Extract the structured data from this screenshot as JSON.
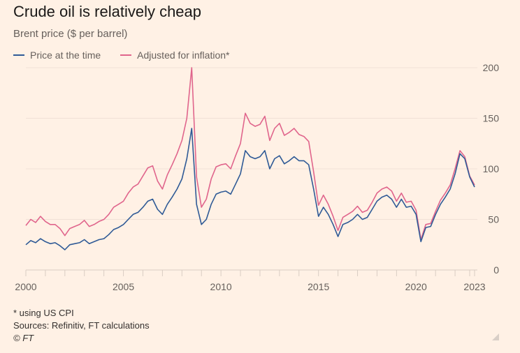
{
  "title": "Crude oil is relatively cheap",
  "subtitle": "Brent price ($ per barrel)",
  "legend": [
    {
      "label": "Price at the time",
      "color": "#2f5a96"
    },
    {
      "label": "Adjusted for inflation*",
      "color": "#e0658c"
    }
  ],
  "footer": {
    "note": "* using US CPI",
    "sources": "Sources: Refinitiv, FT calculations",
    "copyright": "© FT"
  },
  "chart_data": {
    "type": "line",
    "title": "Crude oil is relatively cheap",
    "subtitle": "Brent price ($ per barrel)",
    "xlabel": "",
    "ylabel": "Brent price ($ per barrel)",
    "xlim": [
      2000,
      2023.2
    ],
    "ylim": [
      0,
      200
    ],
    "x_ticks": [
      2000,
      2005,
      2010,
      2015,
      2020,
      2023
    ],
    "y_ticks": [
      0,
      50,
      100,
      150,
      200
    ],
    "y_axis_side": "right",
    "grid": true,
    "legend_position": "top-left",
    "x": [
      2000.0,
      2000.25,
      2000.5,
      2000.75,
      2001.0,
      2001.25,
      2001.5,
      2001.75,
      2002.0,
      2002.25,
      2002.5,
      2002.75,
      2003.0,
      2003.25,
      2003.5,
      2003.75,
      2004.0,
      2004.25,
      2004.5,
      2004.75,
      2005.0,
      2005.25,
      2005.5,
      2005.75,
      2006.0,
      2006.25,
      2006.5,
      2006.75,
      2007.0,
      2007.25,
      2007.5,
      2007.75,
      2008.0,
      2008.25,
      2008.5,
      2008.75,
      2009.0,
      2009.25,
      2009.5,
      2009.75,
      2010.0,
      2010.25,
      2010.5,
      2010.75,
      2011.0,
      2011.25,
      2011.5,
      2011.75,
      2012.0,
      2012.25,
      2012.5,
      2012.75,
      2013.0,
      2013.25,
      2013.5,
      2013.75,
      2014.0,
      2014.25,
      2014.5,
      2014.75,
      2015.0,
      2015.25,
      2015.5,
      2015.75,
      2016.0,
      2016.25,
      2016.5,
      2016.75,
      2017.0,
      2017.25,
      2017.5,
      2017.75,
      2018.0,
      2018.25,
      2018.5,
      2018.75,
      2019.0,
      2019.25,
      2019.5,
      2019.75,
      2020.0,
      2020.25,
      2020.5,
      2020.75,
      2021.0,
      2021.25,
      2021.5,
      2021.75,
      2022.0,
      2022.25,
      2022.5,
      2022.75,
      2023.0
    ],
    "series": [
      {
        "name": "Price at the time",
        "color": "#2f5a96",
        "values": [
          25,
          29,
          27,
          31,
          28,
          26,
          27,
          24,
          20,
          25,
          26,
          27,
          30,
          26,
          28,
          30,
          31,
          35,
          40,
          42,
          45,
          50,
          55,
          57,
          62,
          68,
          70,
          60,
          55,
          65,
          72,
          80,
          90,
          110,
          140,
          65,
          45,
          50,
          65,
          75,
          77,
          78,
          75,
          85,
          95,
          118,
          112,
          110,
          112,
          118,
          100,
          110,
          113,
          105,
          108,
          112,
          108,
          108,
          104,
          80,
          53,
          62,
          55,
          45,
          33,
          45,
          47,
          50,
          55,
          50,
          52,
          60,
          68,
          72,
          74,
          70,
          62,
          70,
          62,
          63,
          55,
          28,
          42,
          43,
          55,
          65,
          72,
          80,
          95,
          115,
          110,
          92,
          82
        ]
      },
      {
        "name": "Adjusted for inflation*",
        "color": "#e0658c",
        "values": [
          44,
          50,
          47,
          53,
          48,
          45,
          45,
          41,
          34,
          41,
          43,
          45,
          49,
          43,
          45,
          48,
          50,
          55,
          62,
          65,
          68,
          76,
          82,
          85,
          93,
          101,
          103,
          88,
          80,
          94,
          104,
          115,
          128,
          150,
          200,
          92,
          62,
          70,
          90,
          102,
          104,
          105,
          100,
          113,
          125,
          155,
          145,
          142,
          144,
          152,
          128,
          140,
          145,
          133,
          136,
          140,
          134,
          132,
          127,
          97,
          64,
          74,
          65,
          53,
          39,
          52,
          55,
          58,
          63,
          57,
          59,
          67,
          76,
          80,
          82,
          78,
          68,
          76,
          67,
          68,
          59,
          30,
          45,
          46,
          58,
          69,
          76,
          84,
          100,
          118,
          112,
          93,
          84
        ]
      }
    ]
  }
}
